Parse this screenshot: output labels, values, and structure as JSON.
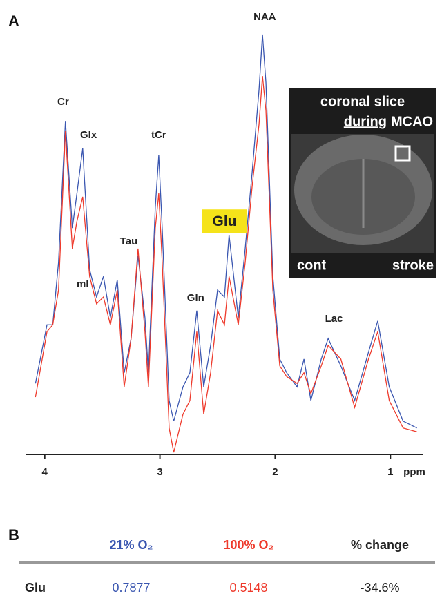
{
  "panels": [
    "A",
    "B"
  ],
  "chart_data": {
    "type": "line",
    "x": [
      4.08,
      3.98,
      3.93,
      3.88,
      3.82,
      3.76,
      3.72,
      3.67,
      3.61,
      3.55,
      3.49,
      3.43,
      3.37,
      3.31,
      3.25,
      3.19,
      3.13,
      3.1,
      3.04,
      3.01,
      2.98,
      2.92,
      2.88,
      2.8,
      2.74,
      2.68,
      2.62,
      2.56,
      2.5,
      2.44,
      2.4,
      2.32,
      2.26,
      2.2,
      2.14,
      2.11,
      2.08,
      2.02,
      1.96,
      1.9,
      1.81,
      1.75,
      1.69,
      1.6,
      1.54,
      1.43,
      1.31,
      1.19,
      1.11,
      1.01,
      0.89,
      0.77
    ],
    "series": [
      {
        "name": "21% O₂",
        "color": "#3a56b0",
        "values": [
          16.9,
          30.6,
          30.6,
          45.2,
          78.2,
          53.2,
          61.3,
          71.8,
          43.5,
          37.1,
          41.9,
          32.3,
          41.1,
          19.4,
          27.4,
          46.8,
          32.3,
          19.4,
          58.1,
          70.2,
          53.2,
          12.9,
          8.1,
          16.1,
          19.4,
          33.9,
          16.1,
          25.8,
          38.7,
          37.1,
          51.6,
          32.3,
          48.4,
          66.1,
          85.5,
          98.4,
          87.1,
          41.9,
          22.6,
          19.4,
          16.1,
          22.6,
          12.9,
          22.6,
          27.4,
          21.0,
          12.9,
          24.2,
          31.5,
          16.1,
          8.1,
          6.5
        ]
      },
      {
        "name": "100% O₂",
        "color": "#ee3a2c",
        "values": [
          13.7,
          29.0,
          30.6,
          38.7,
          75.8,
          48.4,
          54.8,
          60.5,
          41.9,
          35.5,
          37.1,
          30.6,
          38.7,
          16.1,
          27.4,
          48.4,
          29.0,
          16.1,
          53.2,
          61.3,
          45.2,
          6.5,
          0.8,
          9.7,
          12.9,
          29.0,
          9.7,
          19.4,
          33.9,
          30.6,
          41.9,
          30.6,
          45.2,
          62.9,
          77.4,
          88.7,
          80.6,
          38.7,
          21.0,
          18.5,
          16.9,
          19.4,
          14.5,
          21.0,
          25.8,
          22.6,
          11.3,
          22.6,
          29.0,
          12.9,
          6.5,
          5.6
        ]
      }
    ],
    "xlabel": "ppm",
    "xlim": [
      4.16,
      0.72
    ],
    "xticks": [
      4,
      3,
      2,
      1
    ],
    "ylim": [
      0,
      100
    ],
    "annotations": [
      {
        "text": "Cr",
        "x": 3.84,
        "y": 82.6
      },
      {
        "text": "Glx",
        "x": 3.62,
        "y": 74.8
      },
      {
        "text": "mI",
        "x": 3.67,
        "y": 40
      },
      {
        "text": "Tau",
        "x": 3.27,
        "y": 50
      },
      {
        "text": "tCr",
        "x": 3.01,
        "y": 74.8
      },
      {
        "text": "Glu",
        "x": 2.44,
        "y": 54.8,
        "highlight": "#f5e31a"
      },
      {
        "text": "Gln",
        "x": 2.69,
        "y": 36.8
      },
      {
        "text": "NAA",
        "x": 2.09,
        "y": 102.4
      },
      {
        "text": "Lac",
        "x": 1.49,
        "y": 31.9
      }
    ]
  },
  "inset": {
    "title": [
      "coronal slice",
      "during",
      "MCAO"
    ],
    "left": "cont",
    "right": "stroke"
  },
  "table": {
    "header": [
      "21% O₂",
      "100% O₂",
      "% change"
    ],
    "rows": [
      [
        "Glu",
        "0.7877",
        "0.5148",
        "-34.6%"
      ]
    ]
  }
}
